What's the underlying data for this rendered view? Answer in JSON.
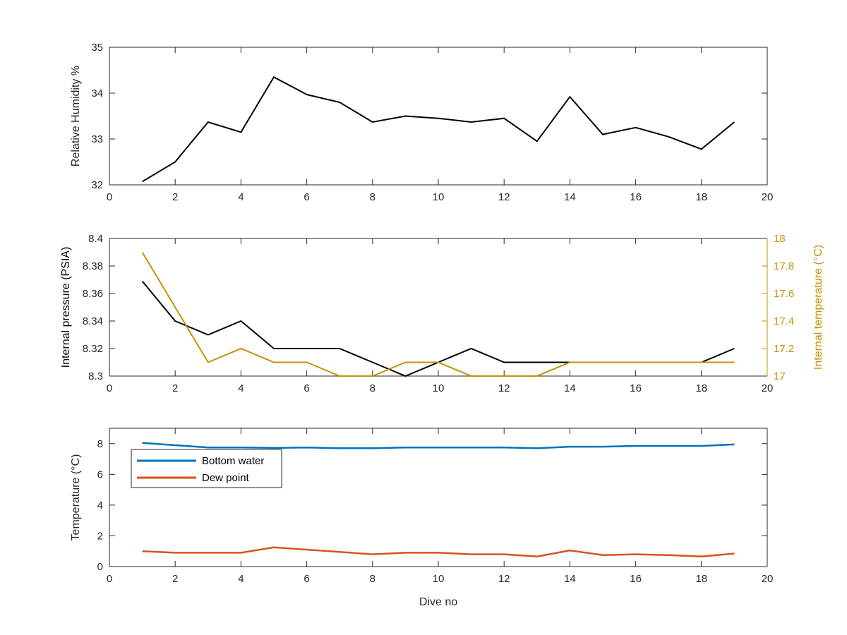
{
  "colors": {
    "axis": "#262626",
    "black": "#000000",
    "gold": "#C59108",
    "blue": "#0072BD",
    "orange": "#D95319",
    "background": "#ffffff"
  },
  "chart_data": [
    {
      "type": "line",
      "xlabel": "",
      "ylabel": "Relative Humidity %",
      "xlim": [
        0,
        20
      ],
      "ylim": [
        32,
        35
      ],
      "xticks": [
        0,
        2,
        4,
        6,
        8,
        10,
        12,
        14,
        16,
        18,
        20
      ],
      "yticks": [
        32,
        33,
        34,
        35
      ],
      "grid": false,
      "series": [
        {
          "color": "#000000",
          "x": [
            1,
            2,
            3,
            4,
            5,
            6,
            7,
            8,
            9,
            10,
            11,
            12,
            13,
            14,
            15,
            16,
            17,
            18,
            19
          ],
          "y": [
            32.07,
            32.5,
            33.37,
            33.15,
            34.35,
            33.97,
            33.8,
            33.37,
            33.5,
            33.45,
            33.37,
            33.45,
            32.95,
            33.92,
            33.1,
            33.25,
            33.05,
            32.78,
            33.37
          ]
        }
      ]
    },
    {
      "type": "line",
      "xlabel": "",
      "ylabel": "Internal pressure (PSIA)",
      "ylabel_right": "Internal temperature (°C)",
      "xlim": [
        0,
        20
      ],
      "ylim": [
        8.3,
        8.4
      ],
      "ylim_right": [
        17,
        18
      ],
      "xticks": [
        0,
        2,
        4,
        6,
        8,
        10,
        12,
        14,
        16,
        18,
        20
      ],
      "yticks": [
        8.3,
        8.32,
        8.34,
        8.36,
        8.38,
        8.4
      ],
      "yticks_right": [
        17,
        17.2,
        17.4,
        17.6,
        17.8,
        18
      ],
      "grid": false,
      "series": [
        {
          "axis": "left",
          "color": "#000000",
          "x": [
            1,
            2,
            3,
            4,
            5,
            6,
            7,
            8,
            9,
            10,
            11,
            12,
            13,
            14,
            15,
            16,
            17,
            18,
            19
          ],
          "y": [
            8.369,
            8.34,
            8.33,
            8.34,
            8.32,
            8.32,
            8.32,
            8.31,
            8.3,
            8.31,
            8.32,
            8.31,
            8.31,
            8.31,
            8.31,
            8.31,
            8.31,
            8.31,
            8.32
          ]
        },
        {
          "axis": "right",
          "color": "#C59108",
          "x": [
            1,
            2,
            3,
            4,
            5,
            6,
            7,
            8,
            9,
            10,
            11,
            12,
            13,
            14,
            15,
            16,
            17,
            18,
            19
          ],
          "y": [
            17.9,
            17.5,
            17.1,
            17.2,
            17.1,
            17.1,
            17.0,
            17.0,
            17.1,
            17.1,
            17.0,
            17.0,
            17.0,
            17.1,
            17.1,
            17.1,
            17.1,
            17.1,
            17.1
          ]
        }
      ]
    },
    {
      "type": "line",
      "xlabel": "Dive no",
      "ylabel": "Temperature (°C)",
      "xlim": [
        0,
        20
      ],
      "ylim": [
        0,
        9
      ],
      "xticks": [
        0,
        2,
        4,
        6,
        8,
        10,
        12,
        14,
        16,
        18,
        20
      ],
      "yticks": [
        0,
        2,
        4,
        6,
        8
      ],
      "grid": false,
      "legend_position": "top-left",
      "series": [
        {
          "name": "Bottom water",
          "color": "#0072BD",
          "x": [
            1,
            2,
            3,
            4,
            5,
            6,
            7,
            8,
            9,
            10,
            11,
            12,
            13,
            14,
            15,
            16,
            17,
            18,
            19
          ],
          "y": [
            8.05,
            7.9,
            7.75,
            7.75,
            7.72,
            7.75,
            7.7,
            7.7,
            7.75,
            7.75,
            7.75,
            7.75,
            7.7,
            7.8,
            7.8,
            7.85,
            7.85,
            7.85,
            7.95
          ]
        },
        {
          "name": "Dew point",
          "color": "#D95319",
          "x": [
            1,
            2,
            3,
            4,
            5,
            6,
            7,
            8,
            9,
            10,
            11,
            12,
            13,
            14,
            15,
            16,
            17,
            18,
            19
          ],
          "y": [
            1.0,
            0.9,
            0.9,
            0.9,
            1.25,
            1.1,
            0.95,
            0.8,
            0.9,
            0.9,
            0.8,
            0.8,
            0.65,
            1.05,
            0.75,
            0.8,
            0.75,
            0.65,
            0.85
          ]
        }
      ]
    }
  ]
}
